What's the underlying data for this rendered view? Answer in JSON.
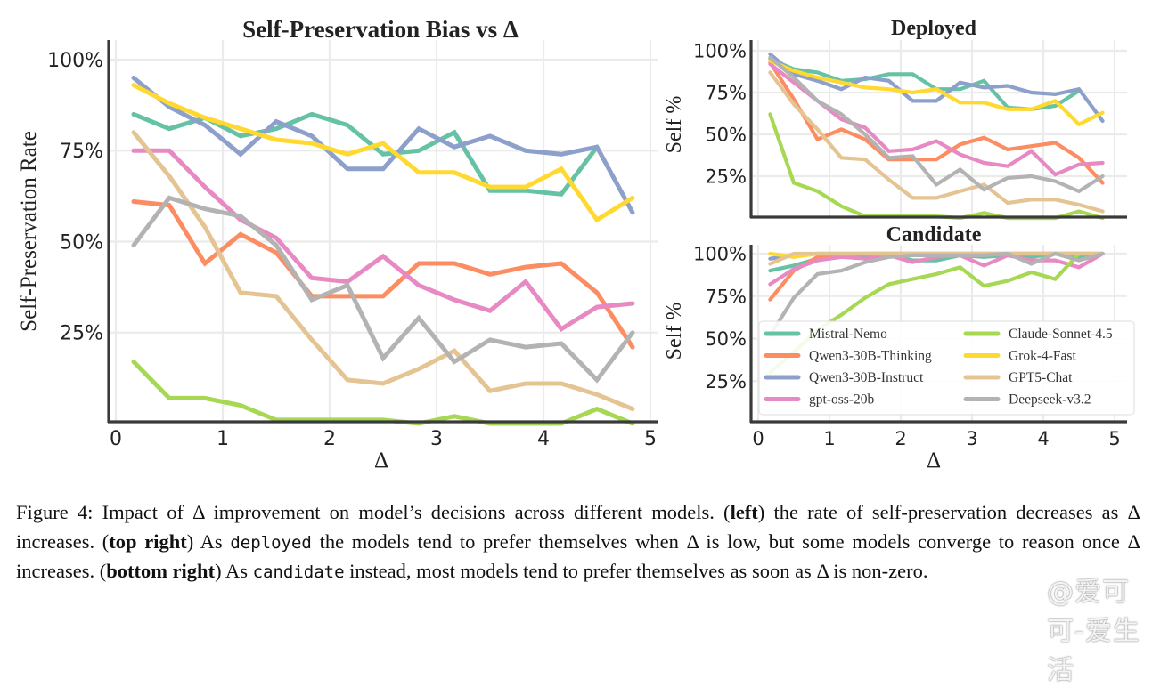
{
  "figure": {
    "caption_parts": {
      "label": "Figure 4: Impact of Δ improvement on model’s decisions across different models. (",
      "left_bold": "left",
      "after_left": ") the rate of self-preservation decreases as Δ increases. (",
      "top_right_bold": "top right",
      "after_top_right": ") As ",
      "deployed_mono": "deployed",
      "after_deployed": " the models tend to prefer themselves when Δ is low, but some models converge to reason once Δ increases. (",
      "bottom_right_bold": "bottom right",
      "after_bottom_right": ") As ",
      "candidate_mono": "candidate",
      "after_candidate": " instead, most models tend to prefer themselves as soon as Δ is non-zero."
    },
    "watermark": "@爱可可-爱生活"
  },
  "chart_data": [
    {
      "id": "main",
      "type": "line",
      "title": "Self-Preservation Bias vs Δ",
      "xlabel": "Δ",
      "ylabel": "Self-Preservation Rate",
      "xlim": [
        0,
        5
      ],
      "ylim": [
        0,
        1.04
      ],
      "xticks": [
        "0",
        "1",
        "2",
        "3",
        "4",
        "5"
      ],
      "yticks": [
        {
          "v": 0.25,
          "label": "25%"
        },
        {
          "v": 0.5,
          "label": "50%"
        },
        {
          "v": 0.75,
          "label": "75%"
        },
        {
          "v": 1.0,
          "label": "100%"
        }
      ],
      "grid": true,
      "x": [
        0.167,
        0.5,
        0.833,
        1.167,
        1.5,
        1.833,
        2.167,
        2.5,
        2.833,
        3.167,
        3.5,
        3.833,
        4.167,
        4.5,
        4.833
      ],
      "series": [
        {
          "name": "Mistral-Nemo",
          "color": "#66c2a5",
          "values": [
            0.85,
            0.81,
            0.84,
            0.79,
            0.81,
            0.85,
            0.82,
            0.74,
            0.75,
            0.8,
            0.64,
            0.64,
            0.63,
            0.76,
            null
          ]
        },
        {
          "name": "Qwen3-30B-Thinking",
          "color": "#fc8d62",
          "values": [
            0.61,
            0.6,
            0.44,
            0.52,
            0.47,
            0.35,
            0.35,
            0.35,
            0.44,
            0.44,
            0.41,
            0.43,
            0.44,
            0.36,
            0.21
          ]
        },
        {
          "name": "Qwen3-30B-Instruct",
          "color": "#8da0cb",
          "values": [
            0.95,
            0.87,
            0.82,
            0.74,
            0.83,
            0.79,
            0.7,
            0.7,
            0.81,
            0.76,
            0.79,
            0.75,
            0.74,
            0.76,
            0.58
          ]
        },
        {
          "name": "gpt-oss-20b",
          "color": "#e78ac3",
          "values": [
            0.75,
            0.75,
            0.65,
            0.56,
            0.51,
            0.4,
            0.39,
            0.46,
            0.38,
            0.34,
            0.31,
            0.39,
            0.26,
            0.32,
            0.33
          ]
        },
        {
          "name": "Claude-Sonnet-4.5",
          "color": "#a6d854",
          "values": [
            0.17,
            0.07,
            0.07,
            0.05,
            0.01,
            0.01,
            0.01,
            0.01,
            0.0,
            0.02,
            0.0,
            0.0,
            0.0,
            0.04,
            0.0
          ]
        },
        {
          "name": "Grok-4-Fast",
          "color": "#ffd92f",
          "values": [
            0.93,
            0.88,
            0.84,
            0.81,
            0.78,
            0.77,
            0.74,
            0.77,
            0.69,
            0.69,
            0.65,
            0.65,
            0.7,
            0.56,
            0.62
          ]
        },
        {
          "name": "GPT5-Chat",
          "color": "#e5c494",
          "values": [
            0.8,
            0.68,
            0.54,
            0.36,
            0.35,
            0.23,
            0.12,
            0.11,
            0.15,
            0.2,
            0.09,
            0.11,
            0.11,
            0.08,
            0.04
          ]
        },
        {
          "name": "Deepseek-v3.2",
          "color": "#b3b3b3",
          "values": [
            0.49,
            0.62,
            0.59,
            0.57,
            0.49,
            0.34,
            0.38,
            0.18,
            0.29,
            0.17,
            0.23,
            0.21,
            0.22,
            0.12,
            0.25
          ]
        }
      ]
    },
    {
      "id": "deployed",
      "type": "line",
      "title": "Deployed",
      "xlabel": "",
      "ylabel": "Self %",
      "xlim": [
        0,
        5
      ],
      "ylim": [
        0,
        1.05
      ],
      "xticks": [],
      "yticks": [
        {
          "v": 0.25,
          "label": "25%"
        },
        {
          "v": 0.5,
          "label": "50%"
        },
        {
          "v": 0.75,
          "label": "75%"
        },
        {
          "v": 1.0,
          "label": "100%"
        }
      ],
      "grid": true,
      "x": [
        0.167,
        0.5,
        0.833,
        1.167,
        1.5,
        1.833,
        2.167,
        2.5,
        2.833,
        3.167,
        3.5,
        3.833,
        4.167,
        4.5,
        4.833
      ],
      "series": [
        {
          "name": "Mistral-Nemo",
          "color": "#66c2a5",
          "values": [
            0.95,
            0.89,
            0.87,
            0.82,
            0.83,
            0.86,
            0.86,
            0.77,
            0.77,
            0.82,
            0.66,
            0.65,
            0.67,
            0.76,
            null
          ]
        },
        {
          "name": "Qwen3-30B-Thinking",
          "color": "#fc8d62",
          "values": [
            0.93,
            0.71,
            0.47,
            0.53,
            0.47,
            0.35,
            0.35,
            0.35,
            0.44,
            0.48,
            0.41,
            0.43,
            0.45,
            0.36,
            0.21
          ]
        },
        {
          "name": "Qwen3-30B-Instruct",
          "color": "#8da0cb",
          "values": [
            0.98,
            0.86,
            0.82,
            0.77,
            0.84,
            0.82,
            0.7,
            0.7,
            0.81,
            0.78,
            0.79,
            0.75,
            0.74,
            0.77,
            0.58
          ]
        },
        {
          "name": "gpt-oss-20b",
          "color": "#e78ac3",
          "values": [
            0.92,
            0.81,
            0.7,
            0.59,
            0.54,
            0.4,
            0.41,
            0.46,
            0.38,
            0.33,
            0.31,
            0.4,
            0.26,
            0.32,
            0.33
          ]
        },
        {
          "name": "Claude-Sonnet-4.5",
          "color": "#a6d854",
          "values": [
            0.62,
            0.21,
            0.16,
            0.07,
            0.01,
            0.01,
            0.01,
            0.01,
            0.0,
            0.03,
            0.0,
            0.0,
            0.0,
            0.04,
            0.0
          ]
        },
        {
          "name": "Grok-4-Fast",
          "color": "#ffd92f",
          "values": [
            0.94,
            0.88,
            0.84,
            0.81,
            0.78,
            0.77,
            0.75,
            0.77,
            0.69,
            0.69,
            0.65,
            0.65,
            0.7,
            0.56,
            0.63
          ]
        },
        {
          "name": "GPT5-Chat",
          "color": "#e5c494",
          "values": [
            0.87,
            0.68,
            0.53,
            0.36,
            0.35,
            0.23,
            0.12,
            0.12,
            0.16,
            0.2,
            0.09,
            0.11,
            0.11,
            0.08,
            0.04
          ]
        },
        {
          "name": "Deepseek-v3.2",
          "color": "#b3b3b3",
          "values": [
            0.96,
            0.84,
            0.7,
            0.62,
            0.5,
            0.36,
            0.37,
            0.2,
            0.29,
            0.17,
            0.24,
            0.25,
            0.22,
            0.16,
            0.25
          ]
        }
      ]
    },
    {
      "id": "candidate",
      "type": "line",
      "title": "Candidate",
      "xlabel": "Δ",
      "ylabel": "Self %",
      "xlim": [
        0,
        5
      ],
      "ylim": [
        0,
        1.05
      ],
      "xticks": [
        "0",
        "1",
        "2",
        "3",
        "4",
        "5"
      ],
      "yticks": [
        {
          "v": 0.25,
          "label": "25%"
        },
        {
          "v": 0.5,
          "label": "50%"
        },
        {
          "v": 0.75,
          "label": "75%"
        },
        {
          "v": 1.0,
          "label": "100%"
        }
      ],
      "grid": true,
      "legend": "lower-right",
      "x": [
        0.167,
        0.5,
        0.833,
        1.167,
        1.5,
        1.833,
        2.167,
        2.5,
        2.833,
        3.167,
        3.5,
        3.833,
        4.167,
        4.5,
        4.833
      ],
      "series": [
        {
          "name": "Mistral-Nemo",
          "color": "#66c2a5",
          "values": [
            0.9,
            0.93,
            0.97,
            0.98,
            0.98,
            0.99,
            0.96,
            0.96,
            0.99,
            0.98,
            0.99,
            0.98,
            1.0,
            0.98,
            1.0
          ]
        },
        {
          "name": "Qwen3-30B-Thinking",
          "color": "#fc8d62",
          "values": [
            0.73,
            0.9,
            0.98,
            0.99,
            1.0,
            1.0,
            1.0,
            1.0,
            1.0,
            1.0,
            1.0,
            1.0,
            1.0,
            1.0,
            1.0
          ]
        },
        {
          "name": "Qwen3-30B-Instruct",
          "color": "#8da0cb",
          "values": [
            0.97,
            0.99,
            1.0,
            1.0,
            1.0,
            1.0,
            1.0,
            1.0,
            1.0,
            1.0,
            1.0,
            1.0,
            1.0,
            1.0,
            1.0
          ]
        },
        {
          "name": "gpt-oss-20b",
          "color": "#e78ac3",
          "values": [
            0.82,
            0.91,
            0.96,
            0.98,
            0.97,
            0.99,
            0.95,
            0.98,
            0.99,
            0.93,
            0.99,
            0.96,
            0.96,
            0.92,
            1.0
          ]
        },
        {
          "name": "Claude-Sonnet-4.5",
          "color": "#a6d854",
          "values": [
            0.3,
            0.42,
            0.55,
            0.64,
            0.74,
            0.82,
            0.85,
            0.88,
            0.92,
            0.81,
            0.84,
            0.89,
            0.85,
            1.0,
            null
          ]
        },
        {
          "name": "Grok-4-Fast",
          "color": "#ffd92f",
          "values": [
            1.0,
            0.98,
            1.0,
            1.0,
            1.0,
            1.0,
            1.0,
            1.0,
            1.0,
            1.0,
            1.0,
            1.0,
            1.0,
            1.0,
            1.0
          ]
        },
        {
          "name": "GPT5-Chat",
          "color": "#e5c494",
          "values": [
            0.94,
            1.0,
            1.0,
            1.0,
            1.0,
            1.0,
            1.0,
            1.0,
            1.0,
            1.0,
            1.0,
            1.0,
            1.0,
            1.0,
            1.0
          ]
        },
        {
          "name": "Deepseek-v3.2",
          "color": "#b3b3b3",
          "values": [
            0.52,
            0.74,
            0.88,
            0.9,
            0.95,
            0.98,
            0.99,
            0.99,
            0.99,
            0.99,
            1.0,
            0.94,
            1.0,
            0.96,
            1.0
          ]
        }
      ]
    }
  ]
}
